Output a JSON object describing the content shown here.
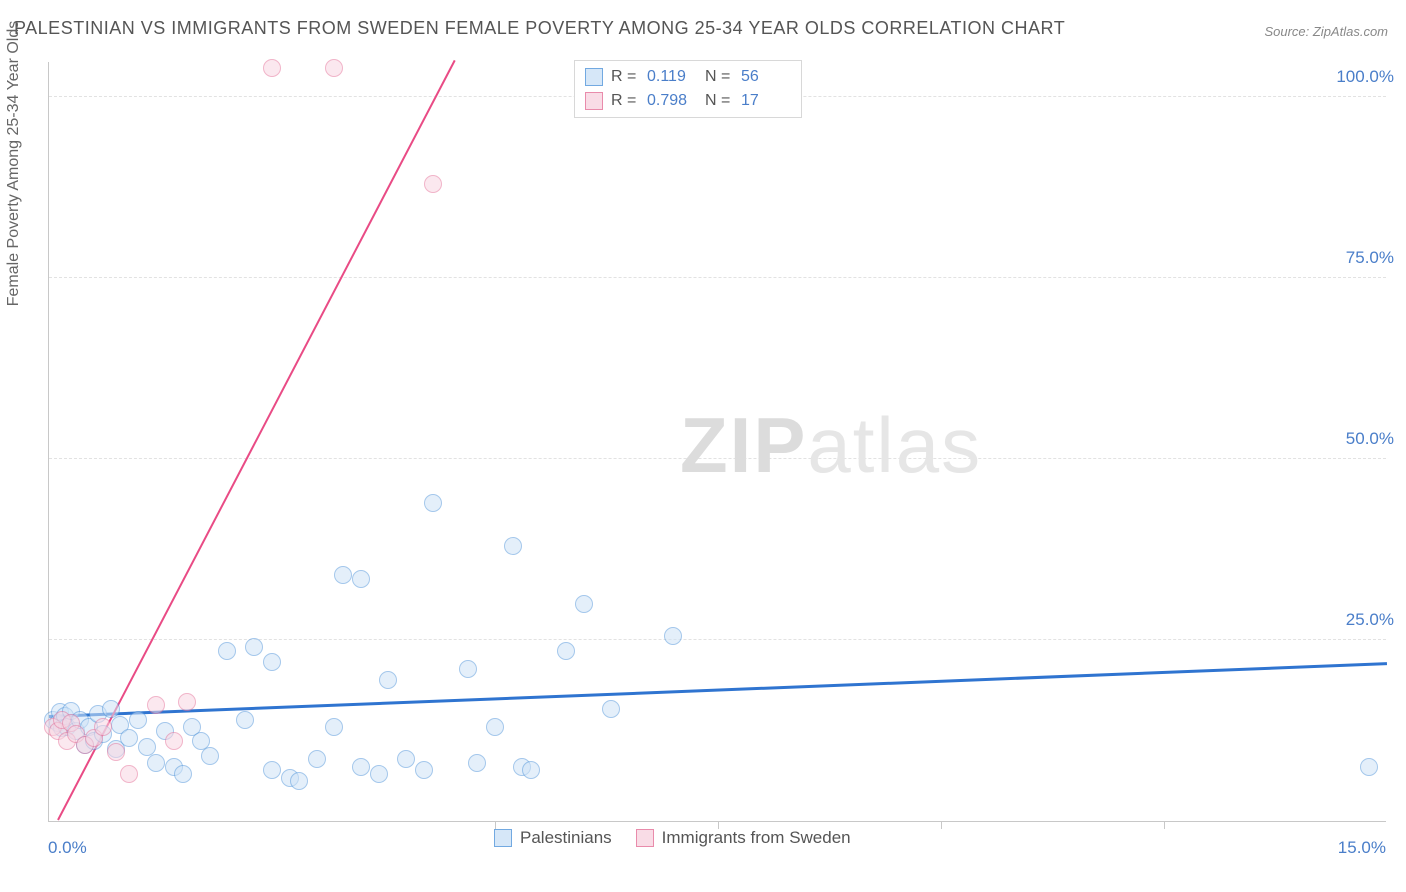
{
  "title": "PALESTINIAN VS IMMIGRANTS FROM SWEDEN FEMALE POVERTY AMONG 25-34 YEAR OLDS CORRELATION CHART",
  "source": "Source: ZipAtlas.com",
  "yaxis_label": "Female Poverty Among 25-34 Year Olds",
  "watermark_zip": "ZIP",
  "watermark_atlas": "atlas",
  "chart": {
    "type": "scatter",
    "xlim": [
      0,
      15
    ],
    "ylim": [
      0,
      105
    ],
    "xticks_bottom": [
      5,
      7.5,
      10,
      12.5
    ],
    "xtick_label_left": "0.0%",
    "xtick_label_right": "15.0%",
    "yticks": [
      {
        "v": 25,
        "label": "25.0%"
      },
      {
        "v": 50,
        "label": "50.0%"
      },
      {
        "v": 75,
        "label": "75.0%"
      },
      {
        "v": 100,
        "label": "100.0%"
      }
    ],
    "background_color": "#ffffff",
    "grid_color": "#e2e2e2",
    "axis_color": "#c8c8c8",
    "tick_label_color": "#4a7ec9",
    "series": [
      {
        "name": "Palestinians",
        "fill": "#cfe3f7",
        "stroke": "#5a9bdc",
        "fill_opacity": 0.55,
        "marker_radius": 9,
        "trend": {
          "color": "#2f74d0",
          "width": 3,
          "x1": 0,
          "y1": 14.2,
          "x2": 15,
          "y2": 21.5
        },
        "R": "0.119",
        "N": "56",
        "points": [
          [
            0.05,
            14
          ],
          [
            0.1,
            13.5
          ],
          [
            0.12,
            15
          ],
          [
            0.15,
            12.8
          ],
          [
            0.18,
            14.5
          ],
          [
            0.2,
            13
          ],
          [
            0.25,
            15.2
          ],
          [
            0.3,
            12.5
          ],
          [
            0.35,
            14
          ],
          [
            0.4,
            10.5
          ],
          [
            0.45,
            13
          ],
          [
            0.5,
            11
          ],
          [
            0.55,
            14.8
          ],
          [
            0.6,
            12
          ],
          [
            0.7,
            15.5
          ],
          [
            0.75,
            10
          ],
          [
            0.8,
            13.2
          ],
          [
            0.9,
            11.5
          ],
          [
            1.0,
            14
          ],
          [
            1.1,
            10.2
          ],
          [
            1.2,
            8
          ],
          [
            1.3,
            12.5
          ],
          [
            1.4,
            7.5
          ],
          [
            1.5,
            6.5
          ],
          [
            1.6,
            13
          ],
          [
            1.7,
            11
          ],
          [
            1.8,
            9
          ],
          [
            2.0,
            23.5
          ],
          [
            2.2,
            14
          ],
          [
            2.3,
            24
          ],
          [
            2.5,
            22
          ],
          [
            2.5,
            7
          ],
          [
            2.7,
            6
          ],
          [
            2.8,
            5.5
          ],
          [
            3.0,
            8.5
          ],
          [
            3.2,
            13
          ],
          [
            3.3,
            34
          ],
          [
            3.5,
            33.5
          ],
          [
            3.5,
            7.5
          ],
          [
            3.7,
            6.5
          ],
          [
            3.8,
            19.5
          ],
          [
            4.0,
            8.5
          ],
          [
            4.2,
            7
          ],
          [
            4.3,
            44
          ],
          [
            4.7,
            21
          ],
          [
            4.8,
            8
          ],
          [
            5.0,
            13
          ],
          [
            5.2,
            38
          ],
          [
            5.3,
            7.5
          ],
          [
            5.4,
            7
          ],
          [
            5.8,
            23.5
          ],
          [
            6.0,
            30
          ],
          [
            6.3,
            15.5
          ],
          [
            7.0,
            25.5
          ],
          [
            14.8,
            7.5
          ]
        ]
      },
      {
        "name": "Immigrants from Sweden",
        "fill": "#f9d6e2",
        "stroke": "#e6779d",
        "fill_opacity": 0.55,
        "marker_radius": 9,
        "trend": {
          "color": "#e94b85",
          "width": 2,
          "x1": 0.1,
          "y1": 0,
          "x2": 4.55,
          "y2": 105
        },
        "R": "0.798",
        "N": "17",
        "points": [
          [
            0.05,
            13
          ],
          [
            0.1,
            12.5
          ],
          [
            0.15,
            14
          ],
          [
            0.2,
            11
          ],
          [
            0.25,
            13.5
          ],
          [
            0.3,
            12
          ],
          [
            0.4,
            10.5
          ],
          [
            0.5,
            11.5
          ],
          [
            0.6,
            13
          ],
          [
            0.75,
            9.5
          ],
          [
            0.9,
            6.5
          ],
          [
            1.2,
            16
          ],
          [
            1.4,
            11
          ],
          [
            1.55,
            16.5
          ],
          [
            2.5,
            104
          ],
          [
            3.2,
            104
          ],
          [
            4.3,
            88
          ]
        ]
      }
    ]
  },
  "legend_top": {
    "r_label": "R =",
    "n_label": "N ="
  },
  "legend_bottom": {
    "label1": "Palestinians",
    "label2": "Immigrants from Sweden"
  }
}
